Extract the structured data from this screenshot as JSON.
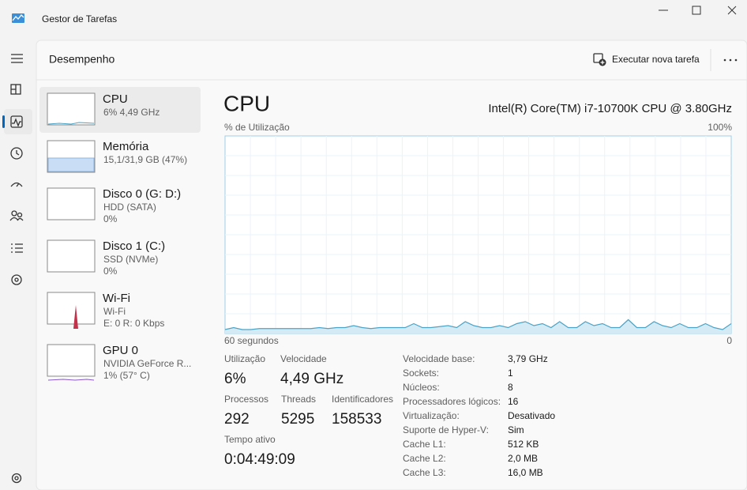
{
  "window": {
    "title": "Gestor de Tarefas"
  },
  "header": {
    "title": "Desempenho",
    "action": "Executar nova tarefa"
  },
  "sidebar": [
    {
      "name": "CPU",
      "lines": [
        "6% 4,49 GHz"
      ]
    },
    {
      "name": "Memória",
      "lines": [
        "15,1/31,9 GB (47%)"
      ]
    },
    {
      "name": "Disco 0 (G: D:)",
      "lines": [
        "HDD (SATA)",
        "0%"
      ]
    },
    {
      "name": "Disco 1 (C:)",
      "lines": [
        "SSD (NVMe)",
        "0%"
      ]
    },
    {
      "name": "Wi-Fi",
      "lines": [
        "Wi-Fi",
        "E: 0 R: 0 Kbps"
      ]
    },
    {
      "name": "GPU 0",
      "lines": [
        "NVIDIA GeForce R...",
        "1% (57° C)"
      ]
    }
  ],
  "cpu": {
    "title": "CPU",
    "model": "Intel(R) Core(TM) i7-10700K CPU @ 3.80GHz",
    "chart": {
      "type": "area",
      "y_label": "% de Utilização",
      "y_max_label": "100%",
      "x_start_label": "60 segundos",
      "x_end_label": "0",
      "ylim": [
        0,
        100
      ],
      "color": "#4ba3c7",
      "values": [
        2,
        3,
        2,
        2,
        2.5,
        2.5,
        2.5,
        2.5,
        2.5,
        2.5,
        2.5,
        3,
        2.5,
        3,
        3,
        4,
        3,
        2.5,
        3,
        3,
        3,
        3,
        5,
        3,
        3,
        3.5,
        4,
        3,
        6,
        4,
        3,
        3,
        4,
        3,
        5,
        6,
        4,
        5,
        3,
        6,
        3,
        3,
        6,
        4,
        5,
        3,
        3,
        7,
        3,
        3,
        6,
        4,
        3,
        5,
        3,
        3,
        5,
        3,
        2,
        5
      ]
    },
    "stats": [
      {
        "label": "Utilização",
        "value": "6%"
      },
      {
        "label": "Velocidade",
        "value": "4,49 GHz"
      },
      {
        "label": "Processos",
        "value": "292"
      },
      {
        "label": "Threads",
        "value": "5295"
      },
      {
        "label": "Identificadores",
        "value": "158533"
      },
      {
        "label": "Tempo ativo",
        "value": "0:04:49:09"
      }
    ],
    "details": [
      [
        "Velocidade base:",
        "3,79 GHz"
      ],
      [
        "Sockets:",
        "1"
      ],
      [
        "Núcleos:",
        "8"
      ],
      [
        "Processadores lógicos:",
        "16"
      ],
      [
        "Virtualização:",
        "Desativado"
      ],
      [
        "Suporte de Hyper-V:",
        "Sim"
      ],
      [
        "Cache L1:",
        "512 KB"
      ],
      [
        "Cache L2:",
        "2,0 MB"
      ],
      [
        "Cache L3:",
        "16,0 MB"
      ]
    ]
  }
}
